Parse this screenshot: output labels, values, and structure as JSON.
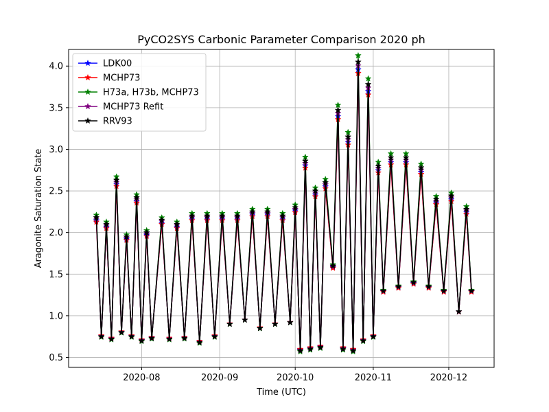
{
  "chart_data": {
    "type": "line",
    "title": "PyCO2SYS Carbonic Parameter Comparison 2020 ph",
    "xlabel": "Time (UTC)",
    "ylabel": "Aragonite Saturation State",
    "xlim": [
      "2020-07-03",
      "2020-12-19"
    ],
    "ylim": [
      0.38,
      4.2
    ],
    "yticks": [
      0.5,
      1.0,
      1.5,
      2.0,
      2.5,
      3.0,
      3.5,
      4.0
    ],
    "ytick_labels": [
      "0.5",
      "1.0",
      "1.5",
      "2.0",
      "2.5",
      "3.0",
      "3.5",
      "4.0"
    ],
    "xticks": [
      "2020-08-01",
      "2020-09-01",
      "2020-10-01",
      "2020-11-01",
      "2020-12-01"
    ],
    "xtick_labels": [
      "2020-08",
      "2020-09",
      "2020-10",
      "2020-11",
      "2020-12"
    ],
    "grid": true,
    "legend_position": "top-left",
    "marker": "star",
    "series": [
      {
        "name": "LDK00",
        "color": "#0000ff",
        "scale": 0.97
      },
      {
        "name": "MCHP73",
        "color": "#ff0000",
        "scale": 0.955
      },
      {
        "name": "H73a, H73b, MCHP73",
        "color": "#008000",
        "scale": 1.025
      },
      {
        "name": "MCHP73 Refit",
        "color": "#800080",
        "scale": 0.985
      },
      {
        "name": "RRV93",
        "color": "#000000",
        "scale": 1.0
      }
    ],
    "base_series": {
      "x": [
        "2020-07-14",
        "2020-07-16",
        "2020-07-18",
        "2020-07-20",
        "2020-07-22",
        "2020-07-24",
        "2020-07-26",
        "2020-07-28",
        "2020-07-30",
        "2020-08-01",
        "2020-08-03",
        "2020-08-05",
        "2020-08-09",
        "2020-08-12",
        "2020-08-15",
        "2020-08-18",
        "2020-08-21",
        "2020-08-24",
        "2020-08-27",
        "2020-08-30",
        "2020-09-02",
        "2020-09-05",
        "2020-09-08",
        "2020-09-11",
        "2020-09-14",
        "2020-09-17",
        "2020-09-20",
        "2020-09-23",
        "2020-09-26",
        "2020-09-29",
        "2020-10-01",
        "2020-10-03",
        "2020-10-05",
        "2020-10-07",
        "2020-10-09",
        "2020-10-11",
        "2020-10-13",
        "2020-10-16",
        "2020-10-18",
        "2020-10-20",
        "2020-10-22",
        "2020-10-24",
        "2020-10-26",
        "2020-10-28",
        "2020-10-30",
        "2020-11-01",
        "2020-11-03",
        "2020-11-05",
        "2020-11-08",
        "2020-11-11",
        "2020-11-14",
        "2020-11-17",
        "2020-11-20",
        "2020-11-23",
        "2020-11-26",
        "2020-11-29",
        "2020-12-02",
        "2020-12-05",
        "2020-12-08",
        "2020-12-10"
      ],
      "y": [
        2.18,
        0.75,
        2.1,
        0.72,
        2.63,
        0.8,
        1.95,
        0.75,
        2.42,
        0.7,
        2.0,
        0.73,
        2.15,
        0.72,
        2.1,
        0.73,
        2.2,
        0.68,
        2.2,
        0.75,
        2.2,
        0.9,
        2.2,
        0.95,
        2.25,
        0.85,
        2.25,
        0.9,
        2.2,
        0.92,
        2.3,
        0.58,
        2.86,
        0.6,
        2.5,
        0.62,
        2.6,
        1.6,
        3.47,
        0.6,
        3.15,
        0.58,
        4.05,
        0.7,
        3.78,
        0.75,
        2.8,
        1.3,
        2.9,
        1.35,
        2.9,
        1.4,
        2.78,
        1.35,
        2.4,
        1.3,
        2.44,
        1.05,
        2.28,
        1.3
      ]
    }
  }
}
